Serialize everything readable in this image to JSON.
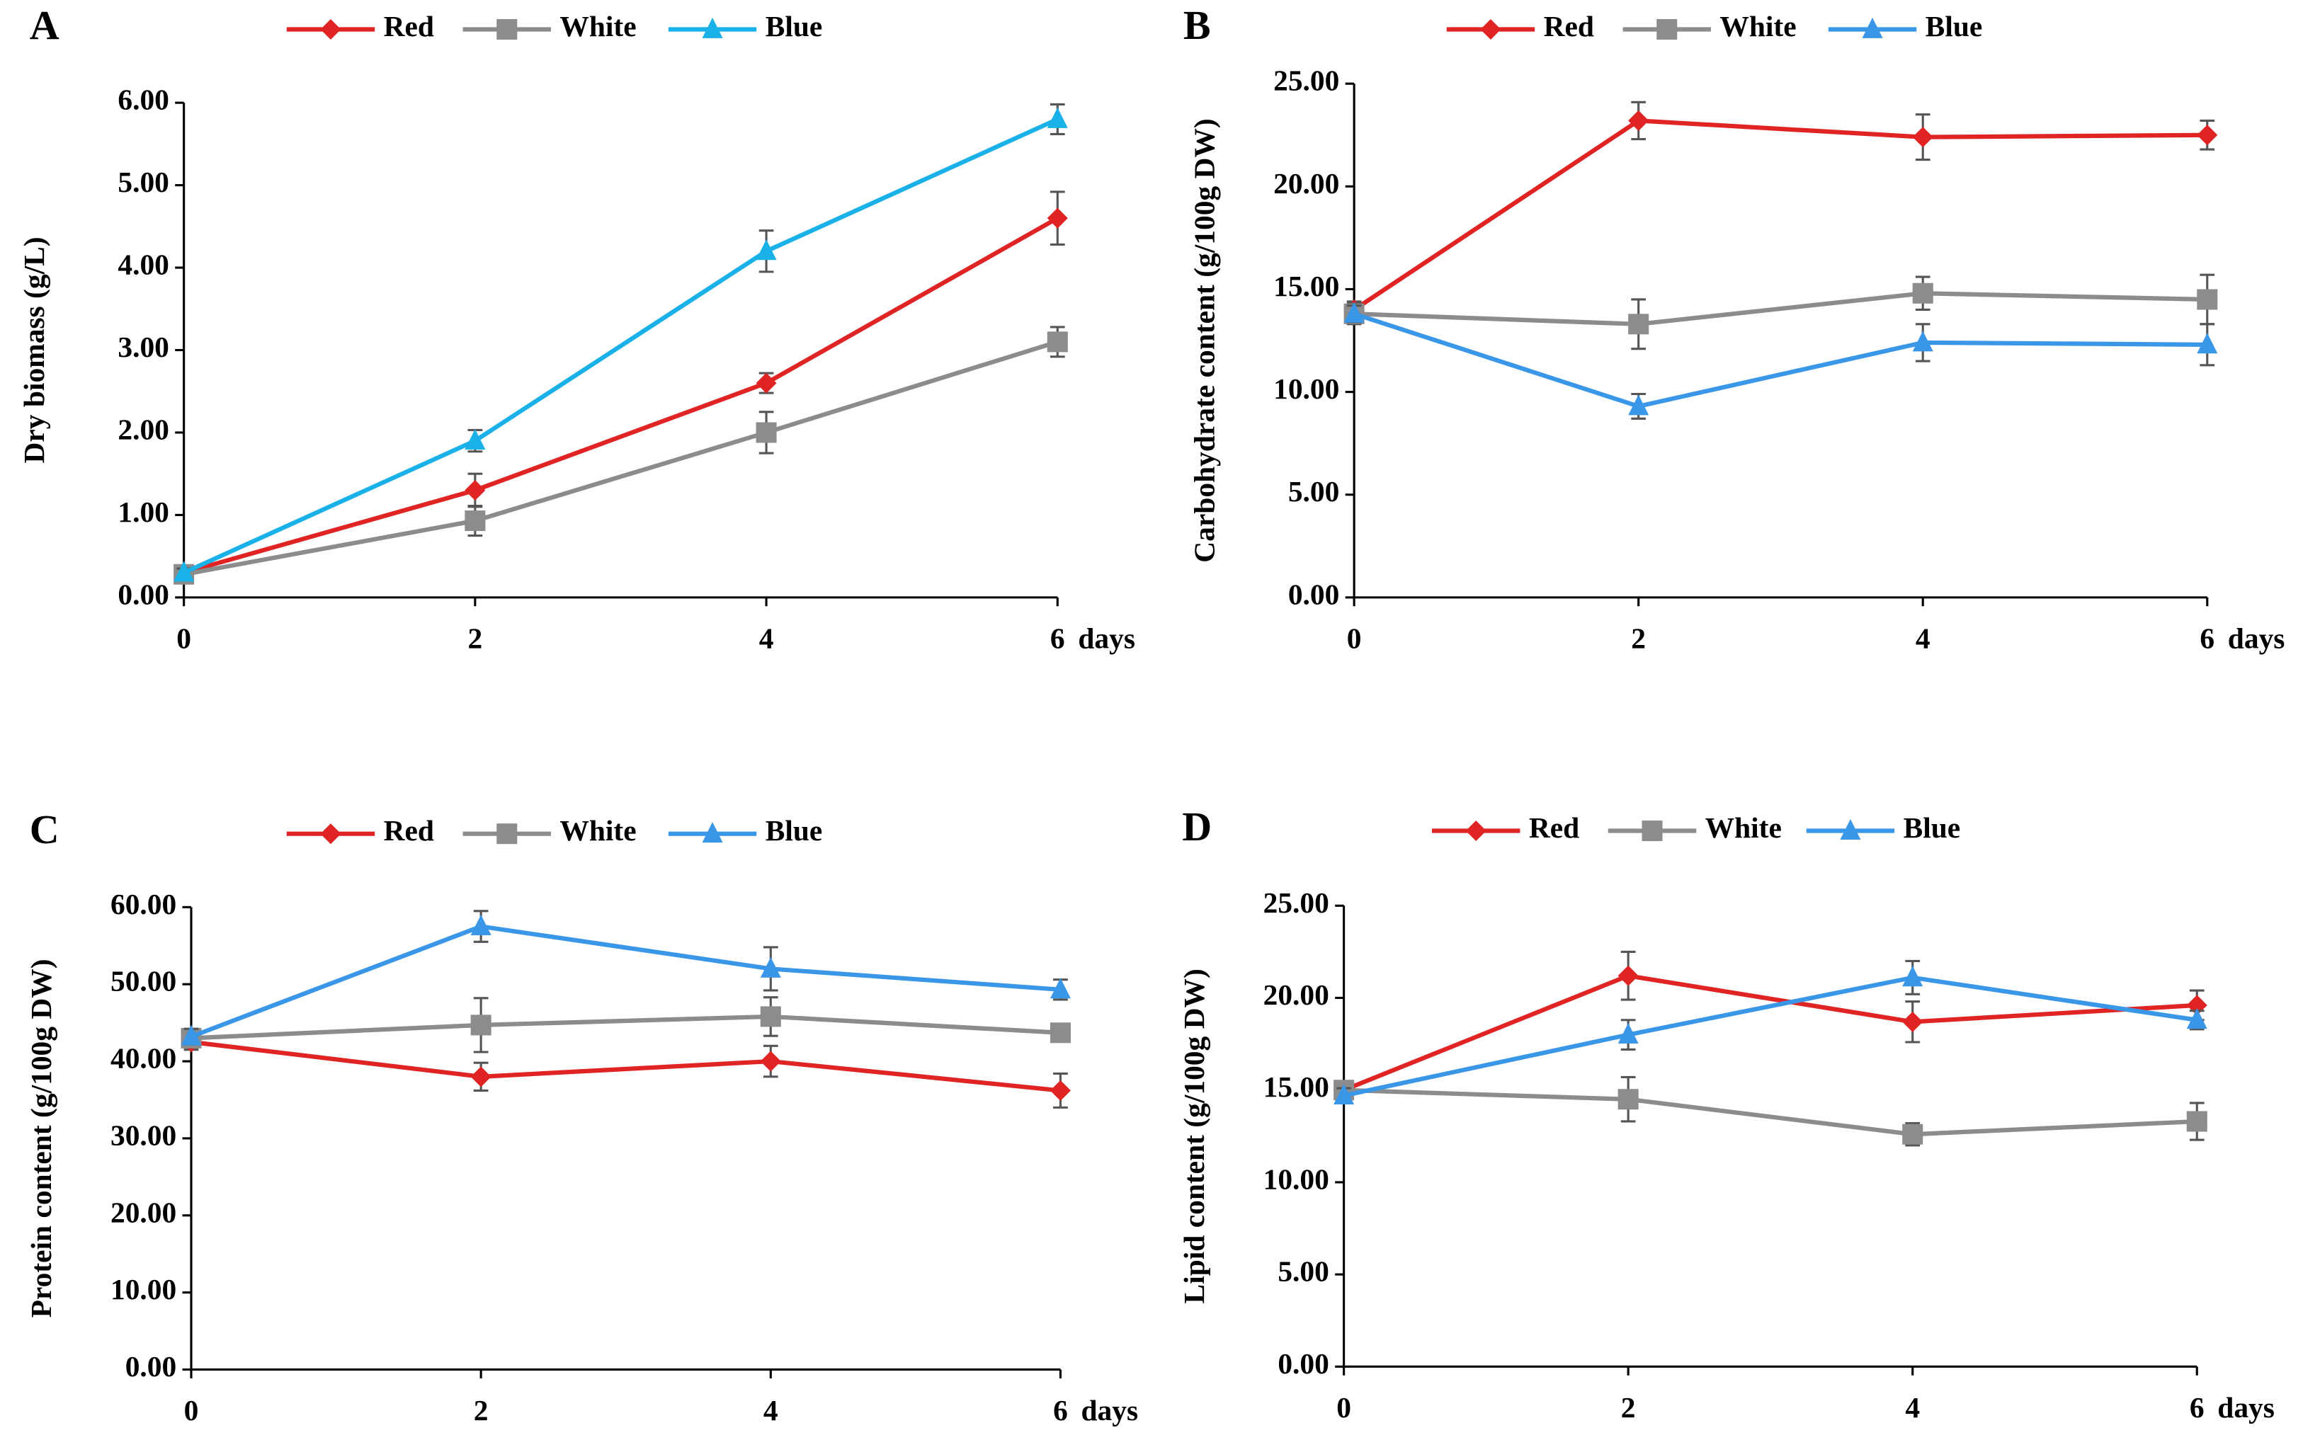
{
  "chart_data": [
    {
      "type": "line",
      "panel": "A",
      "y_label": "Dry biomass (g/L)",
      "x_label": "days",
      "x": [
        0,
        2,
        4,
        6
      ],
      "xlim": [
        0,
        6
      ],
      "xticks": [
        0,
        2,
        4,
        6
      ],
      "ylim": [
        0,
        6
      ],
      "yticks": [
        {
          "value": 0,
          "label": "0.00"
        },
        {
          "value": 1,
          "label": "1.00"
        },
        {
          "value": 2,
          "label": "2.00"
        },
        {
          "value": 3,
          "label": "3.00"
        },
        {
          "value": 4,
          "label": "4.00"
        },
        {
          "value": 5,
          "label": "5.00"
        },
        {
          "value": 6,
          "label": "6.00"
        }
      ],
      "series": [
        {
          "name": "Red",
          "color": "#e02424",
          "marker": "diamond",
          "values": [
            0.3,
            1.3,
            2.6,
            4.6
          ],
          "errors": [
            0.05,
            0.2,
            0.12,
            0.32
          ]
        },
        {
          "name": "White",
          "color": "#8c8c8c",
          "marker": "square",
          "values": [
            0.28,
            0.93,
            2.0,
            3.1
          ],
          "errors": [
            0.05,
            0.18,
            0.25,
            0.18
          ]
        },
        {
          "name": "Blue",
          "color": "#1ab0e8",
          "marker": "triangle",
          "values": [
            0.3,
            1.9,
            4.2,
            5.8
          ],
          "errors": [
            0.05,
            0.13,
            0.25,
            0.18
          ]
        }
      ]
    },
    {
      "type": "line",
      "panel": "B",
      "y_label": "Carbohydrate content (g/100g DW)",
      "x_label": "days",
      "x": [
        0,
        2,
        4,
        6
      ],
      "xlim": [
        0,
        6
      ],
      "xticks": [
        0,
        2,
        4,
        6
      ],
      "ylim": [
        0,
        25
      ],
      "yticks": [
        {
          "value": 0,
          "label": "0.00"
        },
        {
          "value": 5,
          "label": "5.00"
        },
        {
          "value": 10,
          "label": "10.00"
        },
        {
          "value": 15,
          "label": "15.00"
        },
        {
          "value": 20,
          "label": "20.00"
        },
        {
          "value": 25,
          "label": "25.00"
        }
      ],
      "series": [
        {
          "name": "Red",
          "color": "#e02424",
          "marker": "diamond",
          "values": [
            14.0,
            23.2,
            22.4,
            22.5
          ],
          "errors": [
            0.4,
            0.9,
            1.1,
            0.7
          ]
        },
        {
          "name": "White",
          "color": "#8c8c8c",
          "marker": "square",
          "values": [
            13.8,
            13.3,
            14.8,
            14.5
          ],
          "errors": [
            0.5,
            1.2,
            0.8,
            1.2
          ]
        },
        {
          "name": "Blue",
          "color": "#3a96e6",
          "marker": "triangle",
          "values": [
            13.8,
            9.3,
            12.4,
            12.3
          ],
          "errors": [
            0.4,
            0.6,
            0.9,
            1.0
          ]
        }
      ]
    },
    {
      "type": "line",
      "panel": "C",
      "y_label": "Protein content (g/100g DW)",
      "x_label": "days",
      "x": [
        0,
        2,
        4,
        6
      ],
      "xlim": [
        0,
        6
      ],
      "xticks": [
        0,
        2,
        4,
        6
      ],
      "ylim": [
        0,
        60
      ],
      "yticks": [
        {
          "value": 0,
          "label": "0.00"
        },
        {
          "value": 10,
          "label": "10.00"
        },
        {
          "value": 20,
          "label": "20.00"
        },
        {
          "value": 30,
          "label": "30.00"
        },
        {
          "value": 40,
          "label": "40.00"
        },
        {
          "value": 50,
          "label": "50.00"
        },
        {
          "value": 60,
          "label": "60.00"
        }
      ],
      "series": [
        {
          "name": "Red",
          "color": "#e02424",
          "marker": "diamond",
          "values": [
            42.5,
            38.0,
            40.0,
            36.2
          ],
          "errors": [
            1.0,
            1.8,
            2.0,
            2.2
          ]
        },
        {
          "name": "White",
          "color": "#8c8c8c",
          "marker": "square",
          "values": [
            43.0,
            44.7,
            45.8,
            43.7
          ],
          "errors": [
            1.2,
            3.5,
            2.5,
            1.0
          ]
        },
        {
          "name": "Blue",
          "color": "#3a96e6",
          "marker": "triangle",
          "values": [
            43.2,
            57.5,
            52.0,
            49.3
          ],
          "errors": [
            1.0,
            2.0,
            2.8,
            1.3
          ]
        }
      ]
    },
    {
      "type": "line",
      "panel": "D",
      "y_label": "Lipid content (g/100g DW)",
      "x_label": "days",
      "x": [
        0,
        2,
        4,
        6
      ],
      "xlim": [
        0,
        6
      ],
      "xticks": [
        0,
        2,
        4,
        6
      ],
      "ylim": [
        0,
        25
      ],
      "yticks": [
        {
          "value": 0,
          "label": "0.00"
        },
        {
          "value": 5,
          "label": "5.00"
        },
        {
          "value": 10,
          "label": "10.00"
        },
        {
          "value": 15,
          "label": "15.00"
        },
        {
          "value": 20,
          "label": "20.00"
        },
        {
          "value": 25,
          "label": "25.00"
        }
      ],
      "series": [
        {
          "name": "Red",
          "color": "#e02424",
          "marker": "diamond",
          "values": [
            15.0,
            21.2,
            18.7,
            19.6
          ],
          "errors": [
            0.4,
            1.3,
            1.1,
            0.8
          ]
        },
        {
          "name": "White",
          "color": "#8c8c8c",
          "marker": "square",
          "values": [
            15.0,
            14.5,
            12.6,
            13.3
          ],
          "errors": [
            0.4,
            1.2,
            0.6,
            1.0
          ]
        },
        {
          "name": "Blue",
          "color": "#3a96e6",
          "marker": "triangle",
          "values": [
            14.7,
            18.0,
            21.1,
            18.8
          ],
          "errors": [
            0.4,
            0.8,
            0.9,
            0.5
          ]
        }
      ]
    }
  ]
}
